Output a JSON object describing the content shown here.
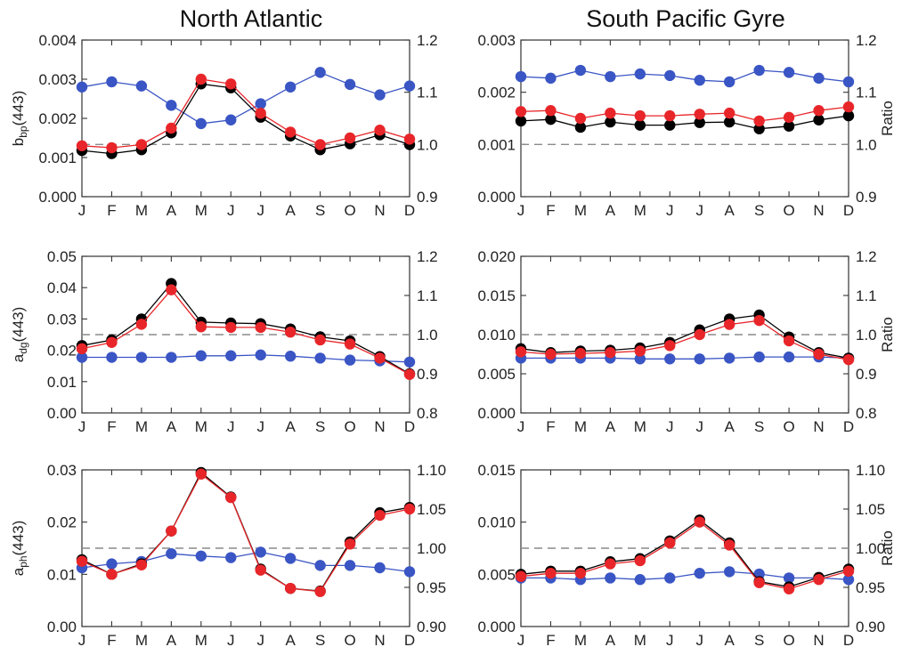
{
  "titles": {
    "left": "North Atlantic",
    "right": "South Pacific Gyre"
  },
  "colors": {
    "black": "#000000",
    "red": "#e8262a",
    "blue": "#3a55c4",
    "reference": "#8a8a8a"
  },
  "chart_data": [
    {
      "type": "line",
      "panel": "North Atlantic",
      "categories": [
        "J",
        "F",
        "M",
        "A",
        "M",
        "J",
        "J",
        "A",
        "S",
        "O",
        "N",
        "D"
      ],
      "ylabel": "b",
      "ylabel_sub": "bp",
      "ylabel_suffix": "(443)",
      "ylim": [
        0,
        0.004
      ],
      "yticks": [
        "0.000",
        "0.001",
        "0.002",
        "0.003",
        "0.004"
      ],
      "y2label": "",
      "y2lim": [
        0.9,
        1.2
      ],
      "y2ticks": [
        "0.9",
        "1.0",
        "1.1",
        "1.2"
      ],
      "reference_line": 1.0,
      "series": [
        {
          "color": "black",
          "axis": "left",
          "values": [
            0.00118,
            0.0011,
            0.0012,
            0.00163,
            0.00288,
            0.00278,
            0.00203,
            0.00155,
            0.0012,
            0.00135,
            0.00158,
            0.00133
          ]
        },
        {
          "color": "red",
          "axis": "left",
          "values": [
            0.0013,
            0.00125,
            0.00133,
            0.00175,
            0.003,
            0.00288,
            0.00213,
            0.00165,
            0.00133,
            0.0015,
            0.0017,
            0.00147
          ]
        },
        {
          "color": "blue",
          "axis": "right",
          "values": [
            1.11,
            1.12,
            1.112,
            1.075,
            1.04,
            1.047,
            1.078,
            1.11,
            1.138,
            1.115,
            1.095,
            1.112
          ]
        }
      ]
    },
    {
      "type": "line",
      "panel": "South Pacific Gyre",
      "categories": [
        "J",
        "F",
        "M",
        "A",
        "M",
        "J",
        "J",
        "A",
        "S",
        "O",
        "N",
        "D"
      ],
      "ylabel": "",
      "ylabel_sub": "",
      "ylabel_suffix": "",
      "ylim": [
        0,
        0.003
      ],
      "yticks": [
        "0.000",
        "0.001",
        "0.002",
        "0.003"
      ],
      "y2label": "Ratio",
      "y2lim": [
        0.9,
        1.2
      ],
      "y2ticks": [
        "0.9",
        "1.0",
        "1.1",
        "1.2"
      ],
      "reference_line": 1.0,
      "series": [
        {
          "color": "black",
          "axis": "left",
          "values": [
            0.00145,
            0.00148,
            0.00133,
            0.00143,
            0.00137,
            0.00137,
            0.00142,
            0.00143,
            0.0013,
            0.00135,
            0.00147,
            0.00155
          ]
        },
        {
          "color": "red",
          "axis": "left",
          "values": [
            0.00163,
            0.00165,
            0.0015,
            0.0016,
            0.00155,
            0.00155,
            0.00158,
            0.0016,
            0.00145,
            0.00152,
            0.00165,
            0.00172
          ]
        },
        {
          "color": "blue",
          "axis": "right",
          "values": [
            1.13,
            1.127,
            1.142,
            1.13,
            1.135,
            1.132,
            1.123,
            1.12,
            1.142,
            1.138,
            1.127,
            1.12
          ]
        }
      ]
    },
    {
      "type": "line",
      "panel": "North Atlantic",
      "categories": [
        "J",
        "F",
        "M",
        "A",
        "M",
        "J",
        "J",
        "A",
        "S",
        "O",
        "N",
        "D"
      ],
      "ylabel": "a",
      "ylabel_sub": "dg",
      "ylabel_suffix": "(443)",
      "ylim": [
        0,
        0.05
      ],
      "yticks": [
        "0.00",
        "0.01",
        "0.02",
        "0.03",
        "0.04",
        "0.05"
      ],
      "y2label": "",
      "y2lim": [
        0.8,
        1.2
      ],
      "y2ticks": [
        "0.8",
        "0.9",
        "1.0",
        "1.1",
        "1.2"
      ],
      "reference_line": 1.0,
      "series": [
        {
          "color": "black",
          "axis": "left",
          "values": [
            0.0215,
            0.0233,
            0.03,
            0.0413,
            0.029,
            0.0287,
            0.0285,
            0.0268,
            0.0243,
            0.023,
            0.018,
            0.0125
          ]
        },
        {
          "color": "red",
          "axis": "left",
          "values": [
            0.0205,
            0.0225,
            0.0283,
            0.0393,
            0.0275,
            0.0273,
            0.0273,
            0.0258,
            0.0233,
            0.022,
            0.0175,
            0.0123
          ]
        },
        {
          "color": "blue",
          "axis": "right",
          "values": [
            0.942,
            0.942,
            0.942,
            0.942,
            0.946,
            0.946,
            0.948,
            0.945,
            0.94,
            0.935,
            0.933,
            0.93
          ]
        }
      ]
    },
    {
      "type": "line",
      "panel": "South Pacific Gyre",
      "categories": [
        "J",
        "F",
        "M",
        "A",
        "M",
        "J",
        "J",
        "A",
        "S",
        "O",
        "N",
        "D"
      ],
      "ylabel": "",
      "ylabel_sub": "",
      "ylabel_suffix": "",
      "ylim": [
        0,
        0.02
      ],
      "yticks": [
        "0.000",
        "0.005",
        "0.010",
        "0.015",
        "0.020"
      ],
      "y2label": "Ratio",
      "y2lim": [
        0.8,
        1.2
      ],
      "y2ticks": [
        "0.8",
        "0.9",
        "1.0",
        "1.1",
        "1.2"
      ],
      "reference_line": 1.0,
      "series": [
        {
          "color": "black",
          "axis": "left",
          "values": [
            0.0082,
            0.0077,
            0.0079,
            0.008,
            0.0083,
            0.009,
            0.0106,
            0.012,
            0.0125,
            0.0097,
            0.0077,
            0.007
          ]
        },
        {
          "color": "red",
          "axis": "left",
          "values": [
            0.0078,
            0.0075,
            0.0076,
            0.0077,
            0.0079,
            0.0086,
            0.01,
            0.0113,
            0.0118,
            0.0092,
            0.0075,
            0.0068
          ]
        },
        {
          "color": "blue",
          "axis": "right",
          "values": [
            0.94,
            0.94,
            0.94,
            0.94,
            0.938,
            0.938,
            0.938,
            0.94,
            0.943,
            0.943,
            0.943,
            0.94
          ]
        }
      ]
    },
    {
      "type": "line",
      "panel": "North Atlantic",
      "categories": [
        "J",
        "F",
        "M",
        "A",
        "M",
        "J",
        "J",
        "A",
        "S",
        "O",
        "N",
        "D"
      ],
      "ylabel": "a",
      "ylabel_sub": "ph",
      "ylabel_suffix": "(443)",
      "ylim": [
        0,
        0.03
      ],
      "yticks": [
        "0.00",
        "0.01",
        "0.02",
        "0.03"
      ],
      "y2label": "",
      "y2lim": [
        0.9,
        1.1
      ],
      "y2ticks": [
        "0.90",
        "0.95",
        "1.00",
        "1.05",
        "1.10"
      ],
      "reference_line": 1.0,
      "series": [
        {
          "color": "black",
          "axis": "left",
          "values": [
            0.0128,
            0.01,
            0.012,
            0.0183,
            0.0295,
            0.0248,
            0.011,
            0.0073,
            0.0068,
            0.0162,
            0.0218,
            0.0228
          ]
        },
        {
          "color": "red",
          "axis": "left",
          "values": [
            0.0125,
            0.01,
            0.0118,
            0.0183,
            0.0292,
            0.0247,
            0.0108,
            0.0073,
            0.0067,
            0.0158,
            0.0213,
            0.0225
          ]
        },
        {
          "color": "blue",
          "axis": "right",
          "values": [
            0.975,
            0.98,
            0.983,
            0.993,
            0.99,
            0.988,
            0.995,
            0.987,
            0.978,
            0.978,
            0.975,
            0.97
          ]
        }
      ]
    },
    {
      "type": "line",
      "panel": "South Pacific Gyre",
      "categories": [
        "J",
        "F",
        "M",
        "A",
        "M",
        "J",
        "J",
        "A",
        "S",
        "O",
        "N",
        "D"
      ],
      "ylabel": "",
      "ylabel_sub": "",
      "ylabel_suffix": "",
      "ylim": [
        0,
        0.015
      ],
      "yticks": [
        "0.000",
        "0.005",
        "0.010",
        "0.015"
      ],
      "y2label": "Ratio",
      "y2lim": [
        0.9,
        1.1
      ],
      "y2ticks": [
        "0.90",
        "0.95",
        "1.00",
        "1.05",
        "1.10"
      ],
      "reference_line": 1.0,
      "series": [
        {
          "color": "black",
          "axis": "left",
          "values": [
            0.005,
            0.0053,
            0.0053,
            0.0062,
            0.0065,
            0.0082,
            0.0102,
            0.008,
            0.0043,
            0.0038,
            0.0047,
            0.0055
          ]
        },
        {
          "color": "red",
          "axis": "left",
          "values": [
            0.0048,
            0.0051,
            0.0051,
            0.006,
            0.0063,
            0.008,
            0.01,
            0.0078,
            0.0042,
            0.0036,
            0.0045,
            0.0053
          ]
        },
        {
          "color": "blue",
          "axis": "right",
          "values": [
            0.962,
            0.962,
            0.96,
            0.962,
            0.96,
            0.962,
            0.968,
            0.97,
            0.967,
            0.962,
            0.962,
            0.96
          ]
        }
      ]
    }
  ]
}
